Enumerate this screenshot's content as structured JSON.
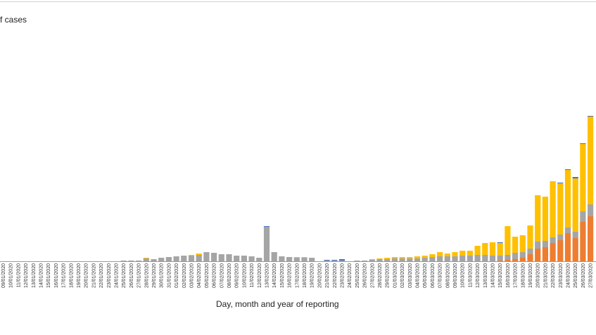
{
  "chart_data": {
    "type": "bar",
    "stacked": true,
    "ylabel": "f cases",
    "xlabel": "Day, month and year of reporting",
    "ylim": [
      0,
      230
    ],
    "grid": false,
    "categories": [
      "09/01/2020",
      "10/01/2020",
      "11/01/2020",
      "12/01/2020",
      "13/01/2020",
      "14/01/2020",
      "15/01/2020",
      "16/01/2020",
      "17/01/2020",
      "18/01/2020",
      "19/01/2020",
      "20/01/2020",
      "21/01/2020",
      "22/01/2020",
      "23/01/2020",
      "24/01/2020",
      "25/01/2020",
      "26/01/2020",
      "27/01/2020",
      "28/01/2020",
      "29/01/2020",
      "30/01/2020",
      "31/01/2020",
      "01/02/2020",
      "02/02/2020",
      "03/02/2020",
      "04/02/2020",
      "05/02/2020",
      "06/02/2020",
      "07/02/2020",
      "08/02/2020",
      "09/02/2020",
      "10/02/2020",
      "11/02/2020",
      "12/02/2020",
      "13/02/2020",
      "14/02/2020",
      "15/02/2020",
      "16/02/2020",
      "17/02/2020",
      "18/02/2020",
      "19/02/2020",
      "20/02/2020",
      "21/02/2020",
      "22/02/2020",
      "23/02/2020",
      "24/02/2020",
      "25/02/2020",
      "26/02/2020",
      "27/02/2020",
      "28/02/2020",
      "29/02/2020",
      "01/03/2020",
      "02/03/2020",
      "03/03/2020",
      "04/03/2020",
      "05/03/2020",
      "06/03/2020",
      "07/03/2020",
      "08/03/2020",
      "09/03/2020",
      "10/03/2020",
      "11/03/2020",
      "12/03/2020",
      "13/03/2020",
      "14/03/2020",
      "15/03/2020",
      "16/03/2020",
      "17/03/2020",
      "18/03/2020",
      "19/03/2020",
      "20/03/2020",
      "21/03/2020",
      "22/03/2020",
      "23/03/2020",
      "24/03/2020",
      "25/03/2020",
      "26/03/2020",
      "27/03/2020"
    ],
    "series": [
      {
        "color": "#ed7d31",
        "values": [
          0,
          0,
          0,
          0,
          0,
          0,
          0,
          0,
          0,
          0,
          0,
          0,
          0,
          0,
          0,
          0,
          0,
          0,
          0,
          0,
          0,
          0,
          0,
          0,
          0,
          0,
          0,
          0,
          0,
          0,
          0,
          0,
          0,
          0,
          0,
          0,
          0,
          0,
          0,
          0,
          0,
          0,
          0,
          0,
          0,
          0,
          0,
          0,
          0,
          0,
          0,
          0,
          0,
          0,
          0,
          0,
          0,
          0,
          0,
          0,
          0,
          0,
          0,
          0,
          0,
          0,
          1,
          2,
          3,
          5,
          10,
          18,
          20,
          26,
          30,
          40,
          33,
          56,
          64
        ]
      },
      {
        "color": "#a5a5a5",
        "values": [
          0,
          0,
          0,
          0,
          0,
          0,
          0,
          0,
          0,
          0,
          0,
          0,
          0,
          0,
          0,
          0,
          1,
          1,
          1,
          4,
          3,
          5,
          6,
          7,
          8,
          8,
          9,
          13,
          12,
          10,
          10,
          8,
          8,
          7,
          5,
          49,
          13,
          7,
          6,
          5,
          5,
          5,
          0,
          1,
          1,
          1,
          0,
          1,
          1,
          2,
          3,
          3,
          4,
          4,
          4,
          4,
          5,
          6,
          7,
          7,
          7,
          8,
          8,
          9,
          9,
          8,
          7,
          7,
          9,
          8,
          8,
          10,
          9,
          8,
          8,
          8,
          9,
          15,
          17
        ]
      },
      {
        "color": "#ffc000",
        "values": [
          0,
          0,
          0,
          0,
          0,
          0,
          0,
          0,
          0,
          0,
          0,
          0,
          0,
          0,
          0,
          0,
          0,
          0,
          0,
          1,
          0,
          0,
          0,
          0,
          0,
          1,
          2,
          0,
          0,
          0,
          0,
          0,
          0,
          0,
          0,
          0,
          0,
          0,
          0,
          1,
          1,
          0,
          0,
          0,
          0,
          0,
          0,
          0,
          0,
          1,
          1,
          2,
          2,
          2,
          2,
          3,
          3,
          4,
          6,
          4,
          6,
          7,
          7,
          13,
          17,
          19,
          18,
          41,
          23,
          24,
          33,
          66,
          63,
          80,
          73,
          82,
          76,
          96,
          125
        ]
      },
      {
        "color": "#4472c4",
        "values": [
          0,
          0,
          0,
          0,
          0,
          0,
          0,
          0,
          0,
          0,
          0,
          0,
          0,
          0,
          0,
          0,
          0,
          0,
          0,
          0,
          0,
          0,
          0,
          0,
          0,
          0,
          0,
          0,
          0,
          0,
          0,
          0,
          0,
          0,
          0,
          1,
          0,
          0,
          0,
          0,
          0,
          0,
          0,
          1,
          1,
          2,
          0,
          0,
          0,
          0,
          0,
          0,
          0,
          0,
          0,
          0,
          0,
          0,
          0,
          0,
          0,
          0,
          0,
          0,
          0,
          0,
          1,
          0,
          0,
          0,
          0,
          0,
          0,
          0,
          1,
          1,
          2,
          1,
          1
        ]
      }
    ]
  }
}
